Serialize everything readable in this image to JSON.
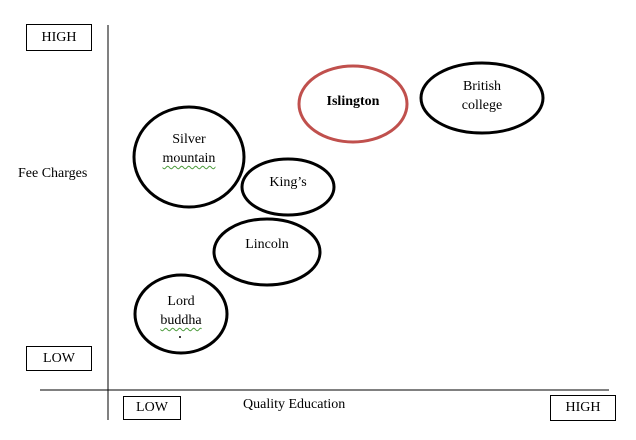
{
  "axes": {
    "y_title": "Fee Charges",
    "y_high": "HIGH",
    "y_low": "LOW",
    "x_title": "Quality Education",
    "x_low": "LOW",
    "x_high": "HIGH"
  },
  "nodes": [
    {
      "id": "islington",
      "line1": "Islington",
      "line2": "",
      "emphasis": true
    },
    {
      "id": "british",
      "line1": "British",
      "line2": "college",
      "emphasis": false
    },
    {
      "id": "silver",
      "line1": "Silver",
      "line2": "mountain",
      "emphasis": false
    },
    {
      "id": "kings",
      "line1": "King’s",
      "line2": "",
      "emphasis": false
    },
    {
      "id": "lincoln",
      "line1": "Lincoln",
      "line2": "",
      "emphasis": false
    },
    {
      "id": "buddha",
      "line1": "Lord",
      "line2": "buddha",
      "emphasis": false
    }
  ],
  "colors": {
    "emphasis_outline": "#c0504d",
    "outline": "#000000",
    "spellcheck_underline": "#4a9a3a"
  }
}
